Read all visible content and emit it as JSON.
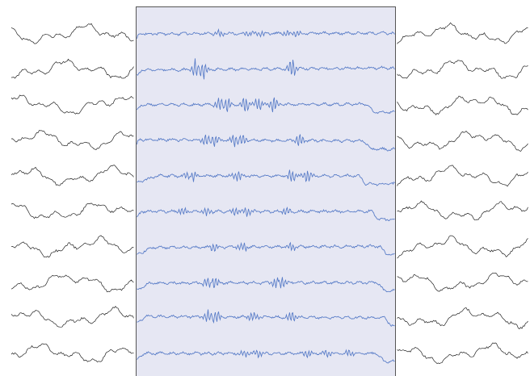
{
  "chart_data": {
    "type": "line",
    "title": "",
    "xlabel": "",
    "ylabel": "",
    "legend": "none",
    "grid": false,
    "channel_count": 10,
    "seed": 20240611,
    "highlight": {
      "start_fraction": 0.256,
      "end_fraction": 0.745,
      "fill_color": "#e6e7f3",
      "border_color": "#555555",
      "trace_color": "#5b7ec8",
      "outside_trace_color": "#222222"
    },
    "channels": [
      {
        "name": "",
        "spikes": [
          0.32,
          0.43,
          0.48,
          0.58,
          0.62
        ],
        "spike_amp": 0.45,
        "drift": [
          0.0,
          -0.05
        ],
        "edge_steps": [
          0.01,
          0.99
        ]
      },
      {
        "name": "",
        "spikes": [
          0.23,
          0.26,
          0.6
        ],
        "spike_amp": 1.3,
        "drift": [
          0.05,
          -0.1
        ],
        "edge_steps": [
          0.02,
          0.99
        ]
      },
      {
        "name": "",
        "spikes": [
          0.32,
          0.35,
          0.42,
          0.47,
          0.53
        ],
        "spike_amp": 1.0,
        "drift": [
          0.0,
          -0.05
        ],
        "edge_steps": [
          0.02,
          0.89
        ]
      },
      {
        "name": "",
        "spikes": [
          0.27,
          0.3,
          0.38,
          0.41,
          0.63
        ],
        "spike_amp": 0.9,
        "drift": [
          -0.05,
          0.05
        ],
        "edge_steps": [
          0.01,
          0.88
        ]
      },
      {
        "name": "",
        "spikes": [
          0.2,
          0.22,
          0.39,
          0.6,
          0.66
        ],
        "spike_amp": 0.9,
        "drift": [
          0.0,
          0.0
        ],
        "edge_steps": [
          0.08,
          0.86
        ]
      },
      {
        "name": "",
        "spikes": [
          0.18,
          0.27,
          0.38,
          0.43,
          0.58
        ],
        "spike_amp": 0.6,
        "drift": [
          0.0,
          0.0
        ],
        "edge_steps": [
          0.02,
          0.91
        ]
      },
      {
        "name": "",
        "spikes": [
          0.3,
          0.41,
          0.6
        ],
        "spike_amp": 0.7,
        "drift": [
          0.05,
          -0.05
        ],
        "edge_steps": [
          0.06,
          0.94
        ]
      },
      {
        "name": "",
        "spikes": [
          0.28,
          0.3,
          0.54,
          0.56
        ],
        "spike_amp": 1.1,
        "drift": [
          0.05,
          0.0
        ],
        "edge_steps": [
          0.05,
          0.93
        ]
      },
      {
        "name": "",
        "spikes": [
          0.28,
          0.31,
          0.45,
          0.6
        ],
        "spike_amp": 0.9,
        "drift": [
          -0.1,
          0.0
        ],
        "edge_steps": [
          0.04,
          0.96
        ]
      },
      {
        "name": "",
        "spikes": [
          0.42,
          0.47,
          0.66,
          0.74,
          0.82
        ],
        "spike_amp": 0.5,
        "drift": [
          0.0,
          0.0
        ],
        "edge_steps": [
          0.03,
          0.93
        ]
      }
    ]
  }
}
